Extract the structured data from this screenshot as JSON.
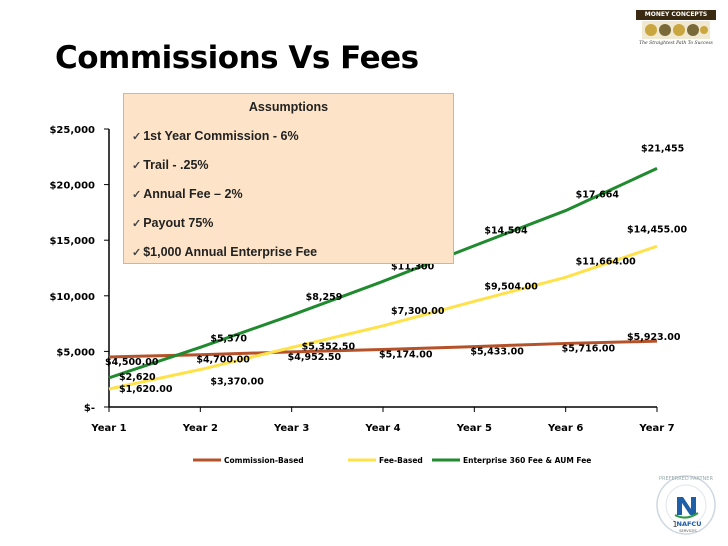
{
  "slide": {
    "title": "Commissions Vs Fees",
    "logo": {
      "top_text": "MONEY CONCEPTS",
      "tagline": "The Straightest Path To Success"
    },
    "badge": {
      "ring_text": "PREFERRED PARTNER",
      "org": "NAFCU",
      "sub": "SERVICES",
      "page_number": "1"
    },
    "assumptions": {
      "title": "Assumptions",
      "items": [
        "1st Year Commission - 6%",
        "Trail - .25%",
        "Annual Fee – 2%",
        "Payout 75%",
        "$1,000 Annual Enterprise Fee"
      ]
    }
  },
  "chart_data": {
    "type": "line",
    "title": "Commissions Vs Fees",
    "xlabel": "",
    "ylabel": "",
    "ylim": [
      0,
      25000
    ],
    "y_ticks": [
      "$-",
      "$5,000",
      "$10,000",
      "$15,000",
      "$20,000",
      "$25,000"
    ],
    "categories": [
      "Year 1",
      "Year 2",
      "Year 3",
      "Year 4",
      "Year 5",
      "Year 6",
      "Year 7"
    ],
    "grid": false,
    "legend": "bottom",
    "series": [
      {
        "name": "Commission-Based",
        "color": "#b5522a",
        "values": [
          4500,
          4700,
          4952.5,
          5174,
          5433,
          5716,
          5923
        ],
        "labels": [
          "$4,500.00",
          "$4,700.00",
          "$4,952.50",
          "$5,174.00",
          "$5,433.00",
          "$5,716.00",
          "$5,923.00"
        ]
      },
      {
        "name": "Fee-Based",
        "color": "#ffe24a",
        "values": [
          1620,
          3370,
          5352.5,
          7300,
          9504,
          11664,
          14455
        ],
        "labels": [
          "$1,620.00",
          "$3,370.00",
          "$5,352.50",
          "$7,300.00",
          "$9,504.00",
          "$11,664.00",
          "$14,455.00"
        ]
      },
      {
        "name": "Enterprise 360 Fee & AUM Fee",
        "color": "#1f8a2e",
        "values": [
          2620,
          5370,
          8259,
          11300,
          14504,
          17664,
          21455
        ],
        "labels": [
          "$2,620",
          "$5,370",
          "$8,259",
          "$11,300",
          "$14,504",
          "$17,664",
          "$21,455"
        ]
      }
    ]
  }
}
